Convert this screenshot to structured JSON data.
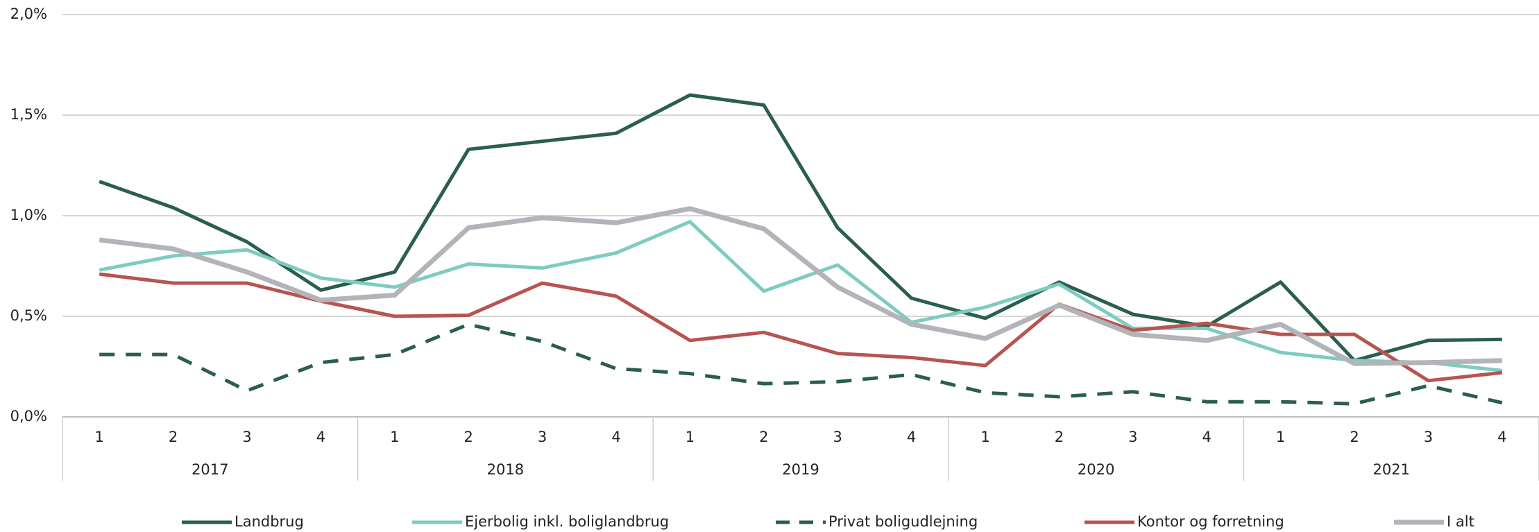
{
  "chart_data": {
    "type": "line",
    "categories": [
      "1",
      "2",
      "3",
      "4",
      "1",
      "2",
      "3",
      "4",
      "1",
      "2",
      "3",
      "4",
      "1",
      "2",
      "3",
      "4",
      "1",
      "2",
      "3",
      "4"
    ],
    "years": [
      "2017",
      "2018",
      "2019",
      "2020",
      "2021"
    ],
    "ylim": [
      0,
      2.0
    ],
    "yticks": [
      {
        "value": 0,
        "label": "0,0%"
      },
      {
        "value": 0.5,
        "label": "0,5%"
      },
      {
        "value": 1.0,
        "label": "1,0%"
      },
      {
        "value": 1.5,
        "label": "1,5%"
      },
      {
        "value": 2.0,
        "label": "2,0%"
      }
    ],
    "grid": true,
    "legend": "bottom",
    "series": [
      {
        "name": "Landbrug",
        "color": "#2a5e4f",
        "dash": false,
        "values": [
          1.17,
          1.04,
          0.87,
          0.63,
          0.72,
          1.33,
          1.37,
          1.41,
          1.6,
          1.55,
          0.94,
          0.59,
          0.49,
          0.67,
          0.51,
          0.45,
          0.67,
          0.28,
          0.38,
          0.385
        ]
      },
      {
        "name": "Ejerbolig inkl. boliglandbrug",
        "color": "#7ecbc2",
        "dash": false,
        "values": [
          0.73,
          0.8,
          0.83,
          0.69,
          0.645,
          0.76,
          0.74,
          0.815,
          0.97,
          0.625,
          0.755,
          0.47,
          0.545,
          0.66,
          0.44,
          0.44,
          0.32,
          0.28,
          0.27,
          0.23
        ]
      },
      {
        "name": "Privat boligudlejning",
        "color": "#2a5e4f",
        "dash": true,
        "values": [
          0.31,
          0.31,
          0.13,
          0.27,
          0.31,
          0.46,
          0.375,
          0.24,
          0.215,
          0.165,
          0.175,
          0.21,
          0.12,
          0.1,
          0.125,
          0.075,
          0.075,
          0.065,
          0.155,
          0.07
        ]
      },
      {
        "name": "Kontor og forretning",
        "color": "#b85450",
        "dash": false,
        "values": [
          0.71,
          0.665,
          0.665,
          0.575,
          0.5,
          0.505,
          0.665,
          0.6,
          0.38,
          0.42,
          0.315,
          0.295,
          0.255,
          0.56,
          0.43,
          0.465,
          0.41,
          0.41,
          0.18,
          0.22
        ]
      },
      {
        "name": "I alt",
        "color": "#b3b3ba",
        "dash": false,
        "values": [
          0.88,
          0.835,
          0.72,
          0.58,
          0.605,
          0.94,
          0.99,
          0.965,
          1.035,
          0.935,
          0.645,
          0.46,
          0.39,
          0.555,
          0.41,
          0.38,
          0.46,
          0.265,
          0.27,
          0.28
        ]
      }
    ]
  }
}
